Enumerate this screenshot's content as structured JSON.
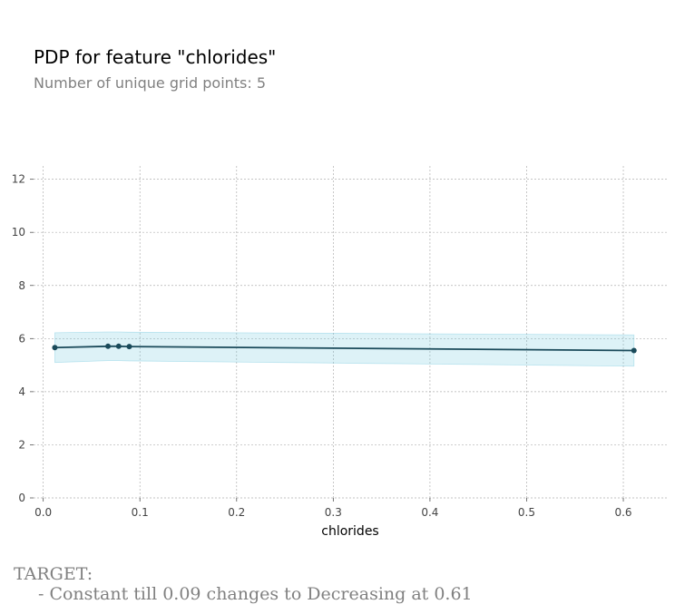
{
  "header": {
    "title": "PDP for feature \"chlorides\"",
    "subtitle": "Number of unique grid points: 5"
  },
  "target": {
    "label": "TARGET:",
    "line": "- Constant till 0.09 changes to Decreasing at 0.61"
  },
  "colors": {
    "line": "#1a4a5a",
    "band": "#66c2dc",
    "grid": "#b0b0b0"
  },
  "chart_data": {
    "type": "line",
    "title": "PDP for feature \"chlorides\"",
    "subtitle": "Number of unique grid points: 5",
    "xlabel": "chlorides",
    "ylabel": "",
    "x": [
      0.012,
      0.067,
      0.078,
      0.089,
      0.611
    ],
    "series": [
      {
        "values": [
          5.66,
          5.71,
          5.71,
          5.7,
          5.55
        ],
        "upper": [
          6.22,
          6.25,
          6.25,
          6.24,
          6.14
        ],
        "lower": [
          5.1,
          5.17,
          5.17,
          5.16,
          4.96
        ]
      }
    ],
    "xlim": [
      -0.01,
      0.645
    ],
    "ylim": [
      0,
      12.5
    ],
    "xticks": [
      0.0,
      0.1,
      0.2,
      0.3,
      0.4,
      0.5,
      0.6
    ],
    "xtick_labels": [
      "0.0",
      "0.1",
      "0.2",
      "0.3",
      "0.4",
      "0.5",
      "0.6"
    ],
    "yticks": [
      0,
      2,
      4,
      6,
      8,
      10,
      12
    ],
    "ytick_labels": [
      "0",
      "2",
      "4",
      "6",
      "8",
      "10",
      "12"
    ],
    "grid": true
  }
}
